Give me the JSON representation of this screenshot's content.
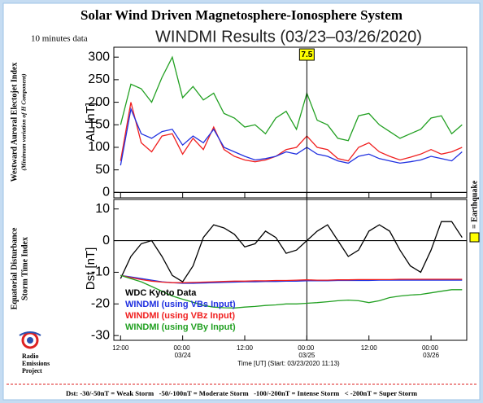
{
  "chart_data": [
    {
      "type": "line",
      "title": "Solar Wind Driven Magnetosphere-Ionosphere System",
      "subtitle": "WINDMI Results (03/23–03/26/2020)",
      "note": "10 minutes data",
      "side_label": "Westward Auroral Electojet Index",
      "side_sublabel": "(Minimum variation of H Component)",
      "ylabel": "AL [nT]",
      "x": [
        12,
        14,
        16,
        18,
        20,
        22,
        24,
        26,
        28,
        30,
        32,
        34,
        36,
        38,
        40,
        42,
        44,
        46,
        48,
        50,
        52,
        54,
        56,
        58,
        60,
        62,
        64,
        66,
        68,
        70,
        72,
        74,
        76,
        78
      ],
      "xlim": [
        10.7,
        78.9
      ],
      "ylim": [
        -12,
        322
      ],
      "yticks": [
        0,
        50,
        100,
        150,
        200,
        250,
        300
      ],
      "series": [
        {
          "color": "#22a022",
          "values": [
            150,
            240,
            230,
            200,
            255,
            300,
            210,
            235,
            205,
            220,
            175,
            165,
            145,
            150,
            130,
            165,
            180,
            140,
            220,
            160,
            150,
            120,
            115,
            170,
            175,
            150,
            135,
            120,
            130,
            140,
            165,
            170,
            130,
            150
          ]
        },
        {
          "color": "#f02020",
          "values": [
            70,
            200,
            110,
            90,
            125,
            130,
            85,
            120,
            95,
            145,
            95,
            80,
            72,
            68,
            72,
            80,
            95,
            100,
            125,
            100,
            95,
            75,
            70,
            100,
            110,
            90,
            80,
            72,
            78,
            85,
            95,
            85,
            90,
            100
          ]
        },
        {
          "color": "#2030e0",
          "values": [
            60,
            185,
            130,
            120,
            135,
            140,
            105,
            125,
            110,
            140,
            100,
            90,
            80,
            72,
            75,
            80,
            90,
            85,
            100,
            85,
            80,
            70,
            65,
            80,
            85,
            75,
            70,
            65,
            68,
            72,
            80,
            75,
            70,
            90
          ]
        }
      ],
      "annotations": [
        {
          "x": 48,
          "label": "7.5"
        }
      ]
    },
    {
      "type": "line",
      "side_label": [
        "Equatorial Disturbance",
        "Storm Time Index"
      ],
      "ylabel": "Dst [nT]",
      "xlabel": "Time [UT] (Start: 03/23/2020 11:13)",
      "x": [
        12,
        14,
        16,
        18,
        20,
        22,
        24,
        26,
        28,
        30,
        32,
        34,
        36,
        38,
        40,
        42,
        44,
        46,
        48,
        50,
        52,
        54,
        56,
        58,
        60,
        62,
        64,
        66,
        68,
        70,
        72,
        74,
        76,
        78
      ],
      "xlim": [
        10.7,
        78.9
      ],
      "xticks": [
        {
          "value": 12,
          "label": "12:00"
        },
        {
          "value": 24,
          "label": "00:00 03/24"
        },
        {
          "value": 36,
          "label": "12:00"
        },
        {
          "value": 48,
          "label": "00:00 03/25"
        },
        {
          "value": 60,
          "label": "12:00"
        },
        {
          "value": 72,
          "label": "00:00 03/26"
        }
      ],
      "ylim": [
        -31.5,
        13
      ],
      "yticks": [
        -30,
        -20,
        -10,
        0,
        10
      ],
      "legend": "lower left",
      "series": [
        {
          "name": "WDC Kyoto Data",
          "color": "#000000",
          "values": [
            -12,
            -5,
            -1,
            0,
            -5,
            -11,
            -13,
            -8,
            1,
            5,
            4,
            2,
            -2,
            -1,
            3,
            1,
            -4,
            -3,
            0,
            3,
            5,
            0,
            -5,
            -3,
            3,
            5,
            3,
            -3,
            -8,
            -10,
            -3,
            6,
            6,
            1
          ]
        },
        {
          "name": "WINDMI (using VBs Input)",
          "color": "#2030e0",
          "values": [
            -11,
            -11.5,
            -12,
            -12.5,
            -13,
            -13.3,
            -13.5,
            -13.5,
            -13.4,
            -13.3,
            -13.2,
            -13.1,
            -13,
            -13,
            -12.9,
            -12.9,
            -12.8,
            -12.8,
            -12.7,
            -12.7,
            -12.7,
            -12.6,
            -12.6,
            -12.6,
            -12.6,
            -12.5,
            -12.5,
            -12.5,
            -12.5,
            -12.5,
            -12.5,
            -12.5,
            -12.5,
            -12.5
          ]
        },
        {
          "name": "WINDMI (using VBz Input)",
          "color": "#f02020",
          "values": [
            -11,
            -11.7,
            -12.3,
            -12.8,
            -13.1,
            -13.3,
            -13.3,
            -13.2,
            -13.1,
            -13,
            -12.9,
            -12.8,
            -12.8,
            -12.7,
            -12.7,
            -12.6,
            -12.6,
            -12.5,
            -12.4,
            -12.5,
            -12.5,
            -12.4,
            -12.4,
            -12.3,
            -12.3,
            -12.3,
            -12.3,
            -12.2,
            -12.2,
            -12.2,
            -12.2,
            -12.2,
            -12.2,
            -12.2
          ]
        },
        {
          "name": "WINDMI (using VBy Input)",
          "color": "#22a022",
          "values": [
            -11,
            -12,
            -13,
            -14.5,
            -16,
            -17.5,
            -18.5,
            -19.5,
            -20.5,
            -21,
            -21.2,
            -21.3,
            -21,
            -20.8,
            -20.5,
            -20.3,
            -20,
            -20,
            -19.8,
            -19.6,
            -19.3,
            -19,
            -18.8,
            -19,
            -19.6,
            -19,
            -18,
            -17.5,
            -17.2,
            -17,
            -16.5,
            -16,
            -15.5,
            -15.5
          ]
        }
      ]
    }
  ],
  "earthquake_key": "= Earthquake",
  "logo": [
    "Radio",
    "Emissions",
    "Project"
  ],
  "footer": "Dst: -30/-50nT = Weak Storm   -50/-100nT = Moderate Storm   -100/-200nT = Intense Storm   < -200nT = Super Storm"
}
